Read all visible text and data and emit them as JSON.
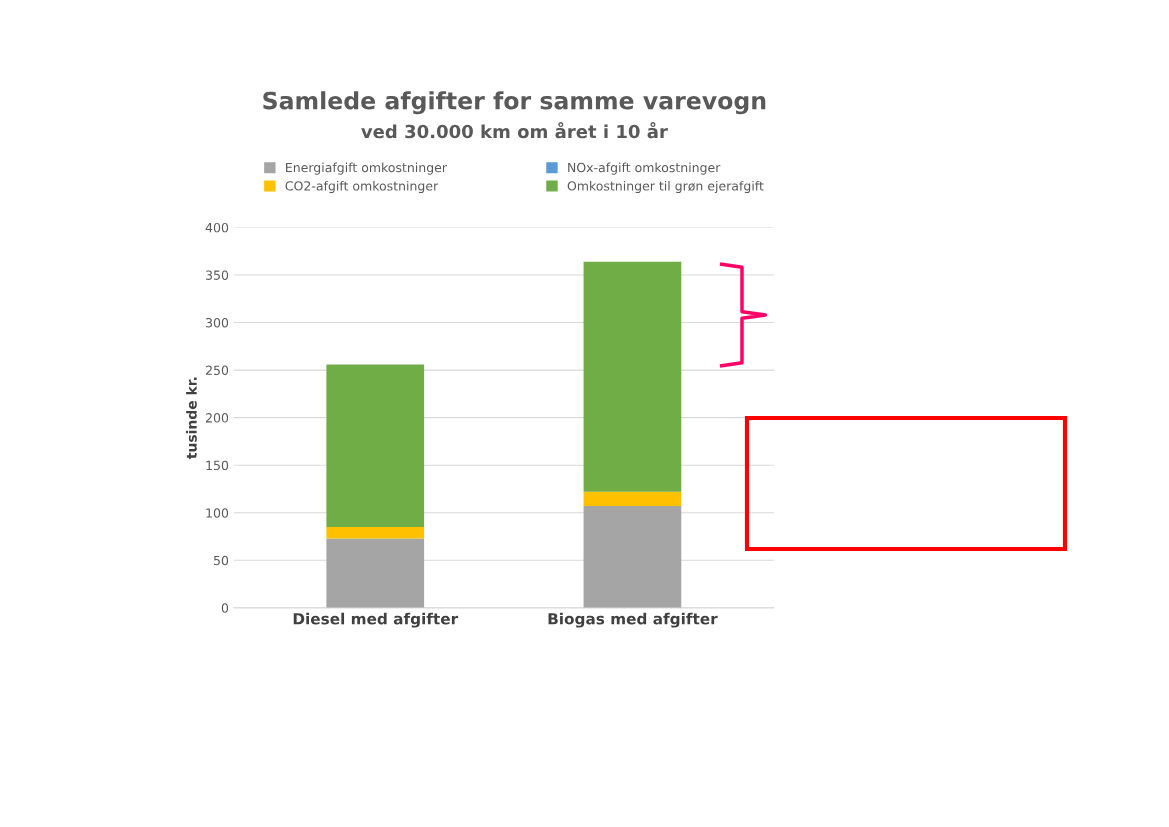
{
  "chart_data": {
    "type": "bar",
    "title": "Samlede afgifter for samme varevogn",
    "subtitle": "ved 30.000 km om året i 10 år",
    "ylabel": "tusinde kr.",
    "categories": [
      "Diesel med afgifter",
      "Biogas med afgifter"
    ],
    "stacked": true,
    "series": [
      {
        "name": "Energiafgift omkostninger",
        "color": "#a5a5a5",
        "values": [
          73,
          107
        ]
      },
      {
        "name": "CO2-afgift omkostninger",
        "color": "#ffc000",
        "values": [
          12,
          15
        ]
      },
      {
        "name": "NOx-afgift omkostninger",
        "color": "#5b9bd5",
        "values": [
          0,
          0
        ]
      },
      {
        "name": "Omkostninger til grøn ejerafgift",
        "color": "#70ad47",
        "values": [
          171,
          242
        ]
      }
    ],
    "ylim": [
      0,
      400
    ],
    "yticks": [
      0,
      50,
      100,
      150,
      200,
      250,
      300,
      350,
      400
    ],
    "grid": "y",
    "legend": "top"
  }
}
